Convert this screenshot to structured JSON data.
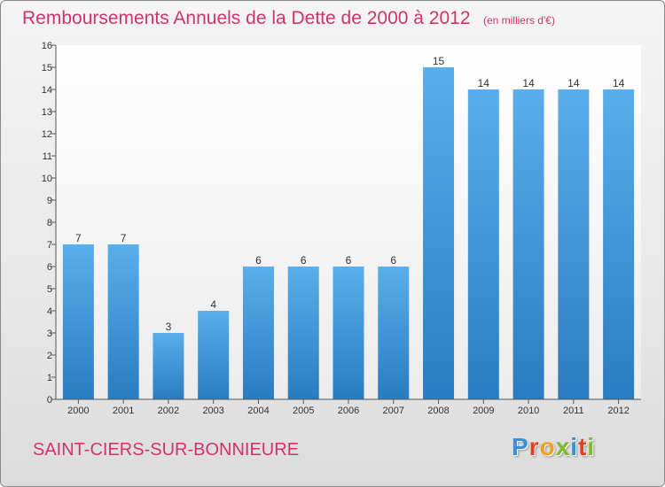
{
  "chart_data": {
    "type": "bar",
    "title": "Remboursements Annuels de la Dette de 2000 à 2012",
    "unit_label": "(en milliers d'€)",
    "categories": [
      "2000",
      "2001",
      "2002",
      "2003",
      "2004",
      "2005",
      "2006",
      "2007",
      "2008",
      "2009",
      "2010",
      "2011",
      "2012"
    ],
    "values": [
      7,
      7,
      3,
      4,
      6,
      6,
      6,
      6,
      15,
      14,
      14,
      14,
      14
    ],
    "y_ticks": [
      "0",
      "1",
      "2",
      "3",
      "4",
      "5",
      "6",
      "7",
      "8",
      "9",
      "10",
      "11",
      "12",
      "13",
      "14",
      "15",
      "16"
    ],
    "ylim": [
      0,
      16
    ],
    "grid": false,
    "bar_color": "#3f95d8"
  },
  "footer": {
    "commune": "SAINT-CIERS-SUR-BONNIEURE",
    "brand_letters": [
      {
        "char": "P",
        "color": "#3a8fd6"
      },
      {
        "char": "r",
        "color": "#e0401f"
      },
      {
        "char": "o",
        "color": "#f0a020"
      },
      {
        "char": "x",
        "color": "#7dbb2a"
      },
      {
        "char": "i",
        "color": "#3a8fd6"
      },
      {
        "char": "t",
        "color": "#e0401f"
      },
      {
        "char": "i",
        "color": "#7dbb2a"
      }
    ]
  }
}
